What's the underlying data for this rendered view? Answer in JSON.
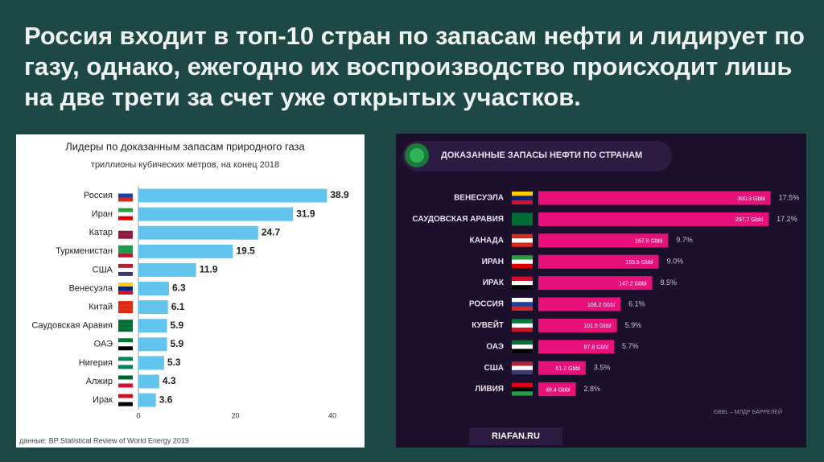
{
  "slide": {
    "title": "Россия входит в топ-10 стран по запасам нефти и лидирует по газу, однако, ежегодно их воспроизводство происходит лишь на две трети за счет уже открытых участков."
  },
  "chart_data": [
    {
      "type": "bar",
      "orientation": "horizontal",
      "title": "Лидеры по доказанным запасам природного газа",
      "subtitle": "триллионы кубических метров, на конец 2018",
      "categories": [
        "Россия",
        "Иран",
        "Катар",
        "Туркменистан",
        "США",
        "Венесуэла",
        "Китай",
        "Саудовская Аравия",
        "ОАЭ",
        "Нигерия",
        "Алжир",
        "Ирак"
      ],
      "values": [
        38.9,
        31.9,
        24.7,
        19.5,
        11.9,
        6.3,
        6.1,
        5.9,
        5.9,
        5.3,
        4.3,
        3.6
      ],
      "color": "#63c4ee",
      "xlim": [
        0,
        40
      ],
      "xticks": [
        0,
        20,
        40
      ],
      "source": "данные: BP Statistical Review of World Energy 2019"
    },
    {
      "type": "bar",
      "orientation": "horizontal",
      "title": "ДОКАЗАННЫЕ ЗАПАСЫ НЕФТИ ПО СТРАНАМ",
      "categories": [
        "ВЕНЕСУЭЛА",
        "САУДОВСКАЯ АРАВИЯ",
        "КАНАДА",
        "ИРАН",
        "ИРАК",
        "РОССИЯ",
        "КУВЕЙТ",
        "ОАЭ",
        "США",
        "ЛИВИЯ"
      ],
      "values": [
        300.3,
        297.7,
        167.8,
        155.6,
        147.2,
        106.2,
        101.5,
        97.8,
        61.2,
        48.4
      ],
      "value_labels": [
        "300.3 Gbbl",
        "297.7 Gbbl",
        "167.8 Gbbl",
        "155.6 Gbbl",
        "147.2 Gbbl",
        "106.2 Gbbl",
        "101.5 Gbbl",
        "97.8 Gbbl",
        "61.2 Gbbl",
        "48.4 Gbbl"
      ],
      "shares": [
        17.5,
        17.2,
        9.7,
        9.0,
        8.5,
        6.1,
        5.9,
        5.7,
        3.5,
        2.8
      ],
      "share_labels": [
        "17.5%",
        "17.2%",
        "9.7%",
        "9.0%",
        "8.5%",
        "6.1%",
        "5.9%",
        "5.7%",
        "3.5%",
        "2.8%"
      ],
      "color": "#e8107a",
      "xlim": [
        0,
        310
      ],
      "note": "GBBL – МЛДР БАРРЕЛЕЙ",
      "footer": "RIAFAN.RU"
    }
  ]
}
